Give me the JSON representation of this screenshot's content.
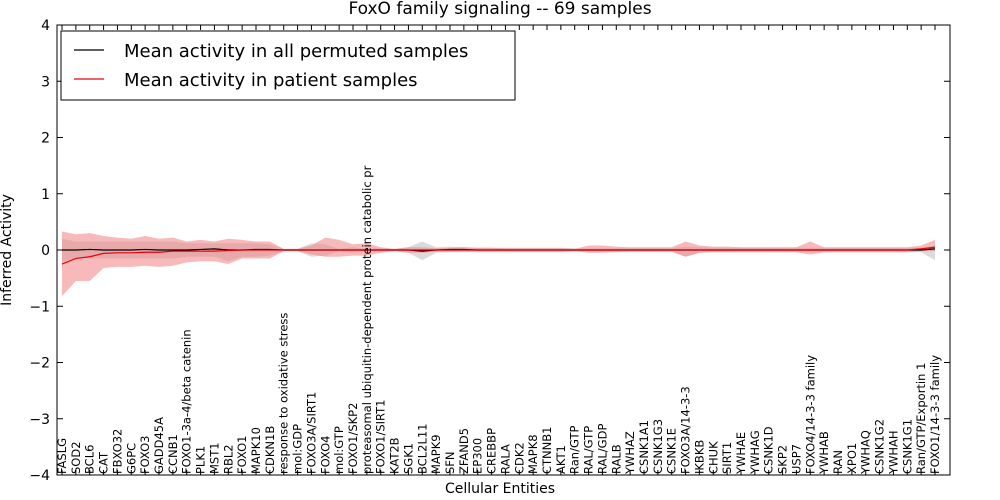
{
  "chart_data": {
    "type": "line",
    "title": "FoxO family signaling -- 69 samples",
    "xlabel": "Cellular Entities",
    "ylabel": "Inferred Activity",
    "ylim": [
      -4,
      4
    ],
    "yticks": [
      -4,
      -3,
      -2,
      -1,
      0,
      1,
      2,
      3,
      4
    ],
    "grid": false,
    "legend_position": "top-left",
    "categories": [
      "FASLG",
      "SOD2",
      "BCL6",
      "CAT",
      "FBXO32",
      "G6PC",
      "FOXO3",
      "GADD45A",
      "CCNB1",
      "FOXO1-3a-4/beta catenin",
      "PLK1",
      "MST1",
      "RBL2",
      "FOXO1",
      "MAPK10",
      "CDKN1B",
      "response to oxidative stress",
      "mol:GDP",
      "FOXO3A/SIRT1",
      "FOXO4",
      "mol:GTP",
      "FOXO1/SKP2",
      "proteasomal ubiquitin-dependent protein catabolic pr",
      "FOXO1/SIRT1",
      "KAT2B",
      "SGK1",
      "BCL2L11",
      "MAPK9",
      "SFN",
      "ZFAND5",
      "EP300",
      "CREBBP",
      "RALA",
      "CDK2",
      "MAPK8",
      "CTNNB1",
      "AKT1",
      "Ran/GTP",
      "RAL/GTP",
      "RAL/GDP",
      "RALB",
      "YWHAZ",
      "CSNK1A1",
      "CSNK1G3",
      "CSNK1E",
      "FOXO3A/14-3-3",
      "IKBKB",
      "CHUK",
      "SIRT1",
      "YWHAE",
      "YWHAG",
      "CSNK1D",
      "SKP2",
      "USP7",
      "FOXO4/14-3-3 family",
      "YWHAB",
      "RAN",
      "XPO1",
      "YWHAQ",
      "CSNK1G2",
      "YWHAH",
      "CSNK1G1",
      "Ran/GTP/Exportin 1",
      "FOXO1/14-3-3 family"
    ],
    "series": [
      {
        "name": "Mean activity in all permuted samples",
        "color": "#000000",
        "band_color": "#b8b8b8",
        "values": [
          0.0,
          0.0,
          0.01,
          0.0,
          0.0,
          0.0,
          0.01,
          0.0,
          0.0,
          0.0,
          0.01,
          0.02,
          0.0,
          0.0,
          0.01,
          0.01,
          0.0,
          0.0,
          0.0,
          0.0,
          0.0,
          0.0,
          0.0,
          0.0,
          0.0,
          0.0,
          -0.02,
          0.0,
          0.01,
          0.01,
          0.0,
          0.0,
          0.0,
          0.0,
          0.0,
          0.0,
          0.0,
          0.0,
          0.0,
          0.0,
          0.0,
          0.0,
          0.0,
          0.0,
          0.0,
          0.0,
          0.0,
          0.0,
          0.0,
          0.0,
          0.0,
          0.0,
          0.0,
          0.0,
          0.0,
          0.0,
          0.0,
          0.0,
          0.0,
          0.0,
          0.0,
          0.0,
          0.0,
          0.02
        ],
        "upper": [
          0.2,
          0.15,
          0.15,
          0.15,
          0.15,
          0.15,
          0.15,
          0.15,
          0.15,
          0.12,
          0.12,
          0.12,
          0.12,
          0.12,
          0.12,
          0.1,
          0.02,
          0.02,
          0.12,
          0.1,
          0.02,
          0.05,
          0.02,
          0.03,
          0.02,
          0.05,
          0.15,
          0.05,
          0.06,
          0.05,
          0.04,
          0.04,
          0.04,
          0.04,
          0.04,
          0.04,
          0.04,
          0.03,
          0.03,
          0.03,
          0.03,
          0.03,
          0.03,
          0.03,
          0.03,
          0.06,
          0.05,
          0.04,
          0.04,
          0.04,
          0.04,
          0.04,
          0.04,
          0.04,
          0.04,
          0.04,
          0.04,
          0.04,
          0.04,
          0.04,
          0.04,
          0.04,
          0.04,
          0.08
        ],
        "lower": [
          -0.2,
          -0.15,
          -0.15,
          -0.15,
          -0.15,
          -0.15,
          -0.15,
          -0.15,
          -0.15,
          -0.12,
          -0.12,
          -0.12,
          -0.2,
          -0.12,
          -0.12,
          -0.1,
          -0.02,
          -0.02,
          -0.12,
          -0.1,
          -0.02,
          -0.05,
          -0.02,
          -0.03,
          -0.02,
          -0.05,
          -0.18,
          -0.05,
          -0.04,
          -0.03,
          -0.04,
          -0.04,
          -0.04,
          -0.04,
          -0.04,
          -0.04,
          -0.04,
          -0.03,
          -0.03,
          -0.03,
          -0.03,
          -0.03,
          -0.03,
          -0.03,
          -0.03,
          -0.12,
          -0.05,
          -0.04,
          -0.04,
          -0.04,
          -0.04,
          -0.04,
          -0.04,
          -0.04,
          -0.04,
          -0.04,
          -0.04,
          -0.04,
          -0.04,
          -0.04,
          -0.04,
          -0.04,
          -0.04,
          -0.18
        ]
      },
      {
        "name": "Mean activity in patient samples",
        "color": "#e8000b",
        "band_color": "#f08080",
        "values": [
          -0.25,
          -0.15,
          -0.12,
          -0.06,
          -0.05,
          -0.05,
          -0.04,
          -0.04,
          -0.02,
          -0.02,
          -0.02,
          -0.02,
          -0.01,
          0.0,
          0.0,
          0.0,
          0.0,
          0.0,
          0.0,
          0.0,
          0.0,
          0.0,
          0.0,
          0.0,
          0.0,
          0.0,
          0.0,
          0.0,
          0.0,
          0.0,
          0.0,
          0.0,
          0.0,
          0.0,
          0.0,
          0.0,
          0.0,
          0.0,
          0.0,
          0.0,
          0.0,
          0.0,
          0.0,
          0.0,
          0.0,
          0.0,
          0.0,
          0.0,
          0.0,
          0.0,
          0.0,
          0.0,
          0.0,
          0.0,
          0.0,
          0.0,
          0.0,
          0.0,
          0.0,
          0.0,
          0.0,
          0.0,
          0.02,
          0.05
        ],
        "upper": [
          0.33,
          0.28,
          0.3,
          0.25,
          0.22,
          0.2,
          0.25,
          0.2,
          0.22,
          0.15,
          0.18,
          0.15,
          0.2,
          0.18,
          0.15,
          0.15,
          0.02,
          0.02,
          0.08,
          0.22,
          0.18,
          0.1,
          0.12,
          0.05,
          0.02,
          0.05,
          0.05,
          0.03,
          0.04,
          0.05,
          0.04,
          0.04,
          0.03,
          0.03,
          0.03,
          0.03,
          0.03,
          0.02,
          0.08,
          0.08,
          0.06,
          0.05,
          0.05,
          0.05,
          0.05,
          0.15,
          0.08,
          0.06,
          0.06,
          0.05,
          0.05,
          0.05,
          0.05,
          0.05,
          0.15,
          0.05,
          0.05,
          0.05,
          0.05,
          0.05,
          0.05,
          0.05,
          0.08,
          0.18
        ],
        "lower": [
          -0.82,
          -0.55,
          -0.55,
          -0.32,
          -0.3,
          -0.3,
          -0.28,
          -0.3,
          -0.28,
          -0.22,
          -0.2,
          -0.2,
          -0.25,
          -0.15,
          -0.15,
          -0.15,
          -0.02,
          -0.02,
          -0.08,
          -0.12,
          -0.12,
          -0.1,
          -0.1,
          -0.05,
          -0.02,
          -0.05,
          -0.05,
          -0.03,
          -0.03,
          -0.03,
          -0.03,
          -0.03,
          -0.03,
          -0.03,
          -0.03,
          -0.03,
          -0.03,
          -0.02,
          -0.05,
          -0.05,
          -0.04,
          -0.03,
          -0.03,
          -0.03,
          -0.03,
          -0.12,
          -0.05,
          -0.04,
          -0.04,
          -0.04,
          -0.04,
          -0.04,
          -0.04,
          -0.04,
          -0.08,
          -0.04,
          -0.04,
          -0.04,
          -0.04,
          -0.04,
          -0.04,
          -0.04,
          -0.02,
          -0.02
        ]
      }
    ]
  }
}
